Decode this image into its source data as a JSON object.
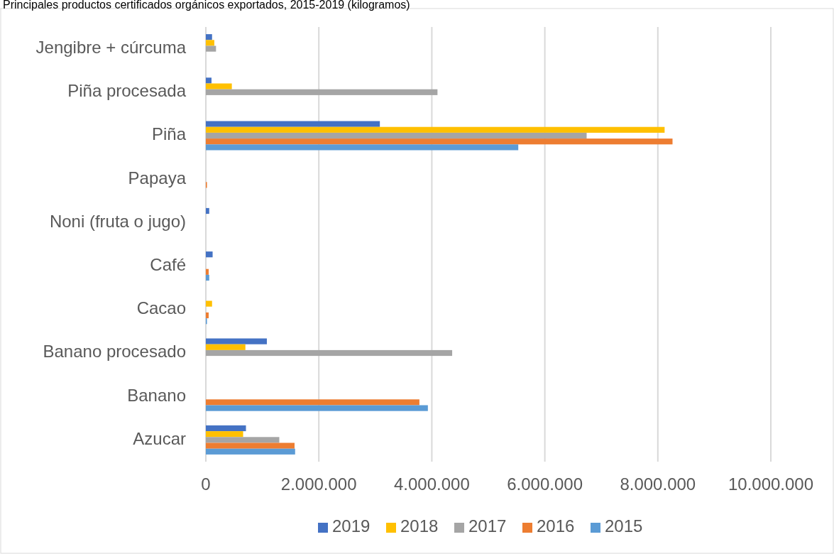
{
  "chart_data": {
    "type": "bar",
    "orientation": "horizontal",
    "title": "Principales productos certificados orgánicos exportados, 2015-2019 (kilogramos)",
    "categories": [
      "Jengibre + cúrcuma",
      "Piña procesada",
      "Piña",
      "Papaya",
      "Noni (fruta o jugo)",
      "Café",
      "Cacao",
      "Banano procesado",
      "Banano",
      "Azucar"
    ],
    "series": [
      {
        "name": "2019",
        "color": "#4472c4",
        "values": [
          110000,
          100000,
          3080000,
          null,
          60000,
          120000,
          null,
          1080000,
          null,
          710000
        ]
      },
      {
        "name": "2018",
        "color": "#ffc000",
        "values": [
          150000,
          460000,
          8120000,
          null,
          null,
          null,
          110000,
          700000,
          null,
          660000
        ]
      },
      {
        "name": "2017",
        "color": "#a5a5a5",
        "values": [
          180000,
          4100000,
          6740000,
          null,
          null,
          null,
          null,
          4360000,
          null,
          1300000
        ]
      },
      {
        "name": "2016",
        "color": "#ed7d31",
        "values": [
          null,
          null,
          8260000,
          20000,
          null,
          50000,
          50000,
          null,
          3780000,
          1570000
        ]
      },
      {
        "name": "2015",
        "color": "#5b9bd5",
        "values": [
          null,
          null,
          5530000,
          null,
          null,
          60000,
          20000,
          null,
          3930000,
          1580000
        ]
      }
    ],
    "xlim": [
      0,
      10000000
    ],
    "xticks": [
      0,
      {
        "value": 2000000,
        "label": "2.000.000"
      },
      {
        "value": 4000000,
        "label": "4.000.000"
      },
      {
        "value": 6000000,
        "label": "6.000.000"
      },
      {
        "value": 8000000,
        "label": "8.000.000"
      },
      {
        "value": 10000000,
        "label": "10.000.000"
      }
    ],
    "grid": "x",
    "legend": "bottom"
  }
}
